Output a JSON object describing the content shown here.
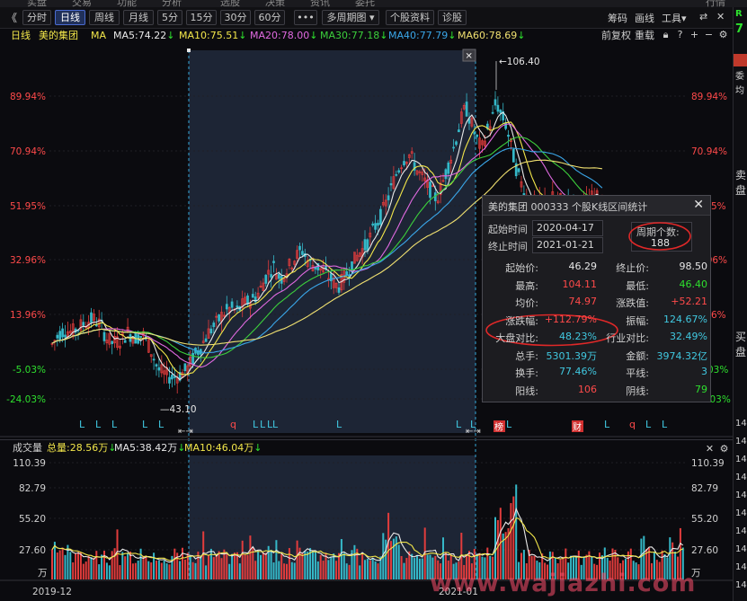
{
  "menu_bar": [
    "实盘",
    "交易",
    "功能",
    "分析",
    "选股",
    "决策",
    "资讯",
    "委托",
    "行情"
  ],
  "toolbar": {
    "back_glyph": "《",
    "periods": [
      "分时",
      "日线",
      "周线",
      "月线",
      "5分",
      "15分",
      "30分",
      "60分",
      "•••",
      "多周期图",
      "个股资料",
      "诊股"
    ],
    "active_period": "日线",
    "right_items": [
      "筹码",
      "画线",
      "工具"
    ],
    "right_icons": [
      "⇄",
      "✕"
    ]
  },
  "ma_row": {
    "period": "日线",
    "stock_name": "美的集团",
    "ma_label": "MA",
    "ma": [
      {
        "label": "MA5:74.22",
        "arrow": "↓",
        "color": "#e8e8e8"
      },
      {
        "label": "MA10:75.51",
        "arrow": "↓",
        "color": "#f2e64a"
      },
      {
        "label": "MA20:78.00",
        "arrow": "↓",
        "color": "#e06ae0"
      },
      {
        "label": "MA30:77.18",
        "arrow": "↓",
        "color": "#3ccf3c"
      },
      {
        "label": "MA40:77.79",
        "arrow": "↓",
        "color": "#3aa6e8"
      },
      {
        "label": "MA60:78.69",
        "arrow": "↓",
        "color": "#f0e070"
      }
    ],
    "right_labels": [
      "前复权",
      "重载"
    ]
  },
  "price_axis_labels": [
    "89.94%",
    "70.94%",
    "51.95%",
    "32.96%",
    "13.96%",
    "-5.03%",
    "-24.03%"
  ],
  "price_axis_colors": [
    "#ff4a4a",
    "#ff4a4a",
    "#ff4a4a",
    "#ff4a4a",
    "#ff4a4a",
    "#2ee02e",
    "#2ee02e"
  ],
  "annotations": {
    "high": "106.40",
    "low": "43.10",
    "close_btn": "✕",
    "events": [
      "L",
      "L",
      "L",
      "L",
      "L",
      "q",
      "L",
      "L",
      "L",
      "L",
      "L",
      "L",
      "L",
      "L",
      "L",
      "q",
      "L",
      "L",
      "L",
      "L",
      "L"
    ],
    "badge_1": "榜",
    "badge_2": "财"
  },
  "stats_panel": {
    "title": "美的集团  000333  个股K线区间统计",
    "close": "✕",
    "start_label": "起始时间",
    "start_date": "2020-04-17",
    "end_label": "终止时间",
    "end_date": "2021-01-21",
    "periods_label": "周期个数:",
    "periods_value": "188",
    "rows": [
      {
        "l1": "起始价:",
        "v1": "46.29",
        "c1": "white",
        "l2": "终止价:",
        "v2": "98.50",
        "c2": "white"
      },
      {
        "l1": "最高:",
        "v1": "104.11",
        "c1": "red",
        "l2": "最低:",
        "v2": "46.40",
        "c2": "green"
      },
      {
        "l1": "均价:",
        "v1": "74.97",
        "c1": "red",
        "l2": "涨跌值:",
        "v2": "+52.21",
        "c2": "red"
      },
      {
        "l1": "涨跌幅:",
        "v1": "+112.79%",
        "c1": "red",
        "l2": "振幅:",
        "v2": "124.67%",
        "c2": "cyan"
      },
      {
        "l1": "大盘对比:",
        "v1": "48.23%",
        "c1": "cyan",
        "l2": "行业对比:",
        "v2": "32.49%",
        "c2": "cyan"
      },
      {
        "l1": "总手:",
        "v1": "5301.39万",
        "c1": "cyan",
        "l2": "金额:",
        "v2": "3974.32亿",
        "c2": "cyan"
      },
      {
        "l1": "换手:",
        "v1": "77.46%",
        "c1": "cyan",
        "l2": "平线:",
        "v2": "3",
        "c2": "cyan"
      },
      {
        "l1": "阳线:",
        "v1": "106",
        "c1": "red",
        "l2": "阴线:",
        "v2": "79",
        "c2": "green"
      }
    ]
  },
  "volume_header": {
    "label": "成交量",
    "total": "总量:28.56万",
    "ma5": "MA5:38.42万",
    "ma10": "MA10:46.04万"
  },
  "volume_axis_labels": [
    "110.39",
    "82.79",
    "55.20",
    "27.60",
    "万"
  ],
  "date_labels": [
    "2019-12",
    "2021-01"
  ],
  "right_strip": [
    "R",
    "7",
    "卖",
    "盘",
    "买",
    "盘",
    "14",
    "14",
    "14",
    "14",
    "14",
    "14",
    "14",
    "14",
    "14",
    "14"
  ],
  "watermark": "www.wajiazhi.com",
  "colors": {
    "up": "#e23c3c",
    "down": "#35b8c8",
    "selection": "#1d2535",
    "ma5": "#e8e8e8",
    "ma10": "#f2e64a",
    "ma20": "#e06ae0",
    "ma30": "#3ccf3c",
    "ma40": "#3aa6e8",
    "ma60": "#f0e070"
  }
}
